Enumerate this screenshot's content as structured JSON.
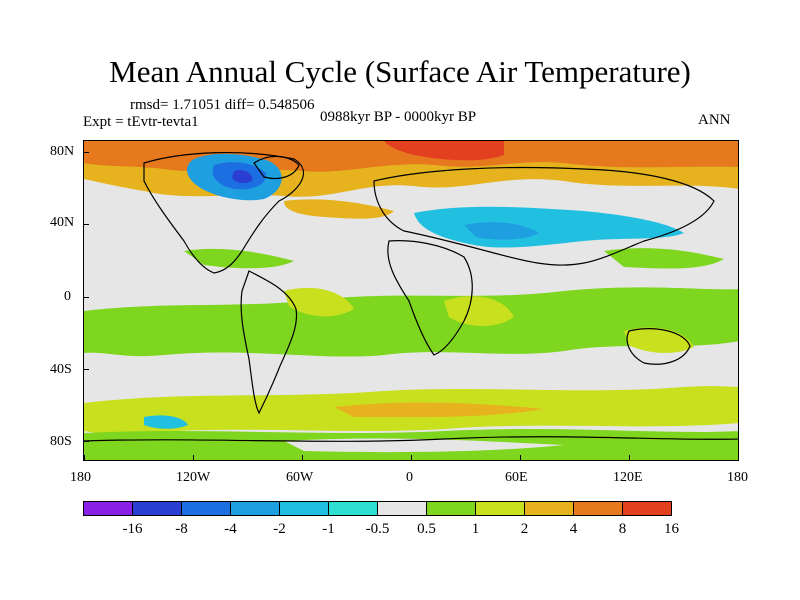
{
  "title": "Mean Annual Cycle (Surface Air Temperature)",
  "stats": "rmsd= 1.71051  diff= 0.548506",
  "experiment": "Expt = tEvtr-tevta1",
  "period": "0988kyr BP - 0000kyr BP",
  "season": "ANN",
  "lat_ticks": [
    "80N",
    "40N",
    "0",
    "40S",
    "80S"
  ],
  "lon_ticks": [
    "180",
    "120W",
    "60W",
    "0",
    "60E",
    "120E",
    "180"
  ],
  "colorbar": {
    "labels": [
      "-16",
      "-8",
      "-4",
      "-2",
      "-1",
      "-0.5",
      "0.5",
      "1",
      "2",
      "4",
      "8",
      "16"
    ],
    "colors": [
      "#8a1fe6",
      "#2a3fd2",
      "#1c6fe0",
      "#1e9fe0",
      "#22c0e0",
      "#2ee0d2",
      "#e6e6e6",
      "#7ed61e",
      "#c8e01e",
      "#e6b31e",
      "#e6781e",
      "#e2401e"
    ]
  }
}
